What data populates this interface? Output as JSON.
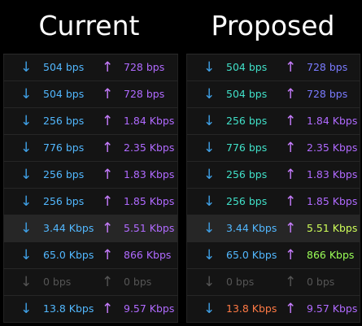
{
  "colors": {
    "down_arrow": "#3fa0e6",
    "down_value": "#52b8ff",
    "down_value_teal": "#40e0c8",
    "up_arrow": "#c77dff",
    "up_value": "#b06aff",
    "up_value_lowblue": "#7a7bff",
    "up_value_green": "#9bff57",
    "up_value_yellowgreen": "#cfff5a",
    "disabled": "#555555",
    "orange": "#ff7a45",
    "title": "#ffffff"
  },
  "arrows": {
    "down": "↓",
    "up": "↑"
  },
  "current": {
    "title": "Current",
    "rows": [
      {
        "down": "504 bps",
        "up": "728 bps"
      },
      {
        "down": "504 bps",
        "up": "728 bps"
      },
      {
        "down": "256 bps",
        "up": "1.84 Kbps"
      },
      {
        "down": "776 bps",
        "up": "2.35 Kbps"
      },
      {
        "down": "256 bps",
        "up": "1.83 Kbps"
      },
      {
        "down": "256 bps",
        "up": "1.85 Kbps"
      },
      {
        "down": "3.44 Kbps",
        "up": "5.51 Kbps"
      },
      {
        "down": "65.0 Kbps",
        "up": "866 Kbps"
      },
      {
        "down": "0 bps",
        "up": "0 bps"
      },
      {
        "down": "13.8 Kbps",
        "up": "9.57 Kbps"
      }
    ]
  },
  "proposed": {
    "title": "Proposed",
    "rows": [
      {
        "down": "504 bps",
        "up": "728 bps"
      },
      {
        "down": "504 bps",
        "up": "728 bps"
      },
      {
        "down": "256 bps",
        "up": "1.84 Kbps"
      },
      {
        "down": "776 bps",
        "up": "2.35 Kbps"
      },
      {
        "down": "256 bps",
        "up": "1.83 Kbps"
      },
      {
        "down": "256 bps",
        "up": "1.85 Kbps"
      },
      {
        "down": "3.44 Kbps",
        "up": "5.51 Kbps"
      },
      {
        "down": "65.0 Kbps",
        "up": "866 Kbps"
      },
      {
        "down": "0 bps",
        "up": "0 bps"
      },
      {
        "down": "13.8 Kbps",
        "up": "9.57 Kbps"
      }
    ]
  }
}
